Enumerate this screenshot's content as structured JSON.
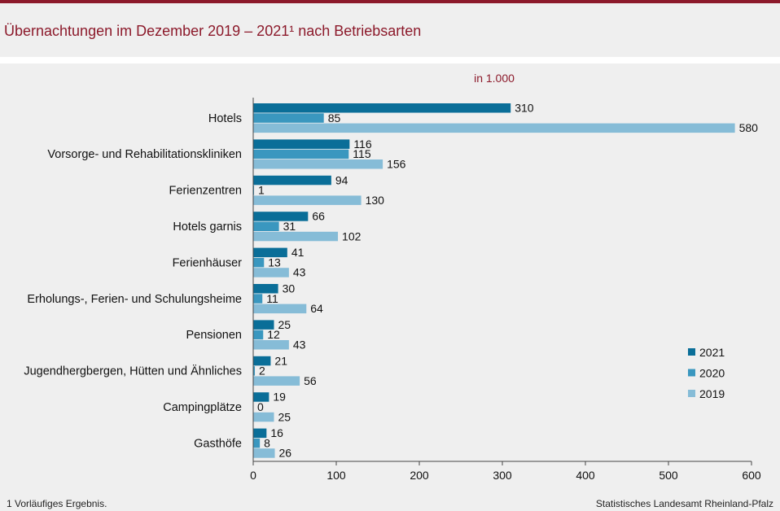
{
  "title": "Übernachtungen im Dezember 2019 – 2021¹ nach Betriebsarten",
  "footnote": "1 Vorläufiges  Ergebnis.",
  "source": "Statistisches Landesamt  Rheinland-Pfalz",
  "chart_data": {
    "type": "bar",
    "orientation": "horizontal",
    "unit_label": "in 1.000",
    "categories": [
      "Hotels",
      "Vorsorge- und Rehabilitationskliniken",
      "Ferienzentren",
      "Hotels garnis",
      "Ferienhäuser",
      "Erholungs-, Ferien- und Schulungsheime",
      "Pensionen",
      "Jugendhergbergen, Hütten und Ähnliches",
      "Campingplätze",
      "Gasthöfe"
    ],
    "series": [
      {
        "name": "2021",
        "color": "#0a6e98",
        "values": [
          310,
          116,
          94,
          66,
          41,
          30,
          25,
          21,
          19,
          16
        ]
      },
      {
        "name": "2020",
        "color": "#3a97bf",
        "values": [
          85,
          115,
          1,
          31,
          13,
          11,
          12,
          2,
          0,
          8
        ]
      },
      {
        "name": "2019",
        "color": "#86bcd7",
        "values": [
          580,
          156,
          130,
          102,
          43,
          64,
          43,
          56,
          25,
          26
        ]
      }
    ],
    "xlim": [
      0,
      600
    ],
    "xticks": [
      0,
      100,
      200,
      300,
      400,
      500,
      600
    ],
    "grid": false,
    "legend_position": "lower-right"
  }
}
